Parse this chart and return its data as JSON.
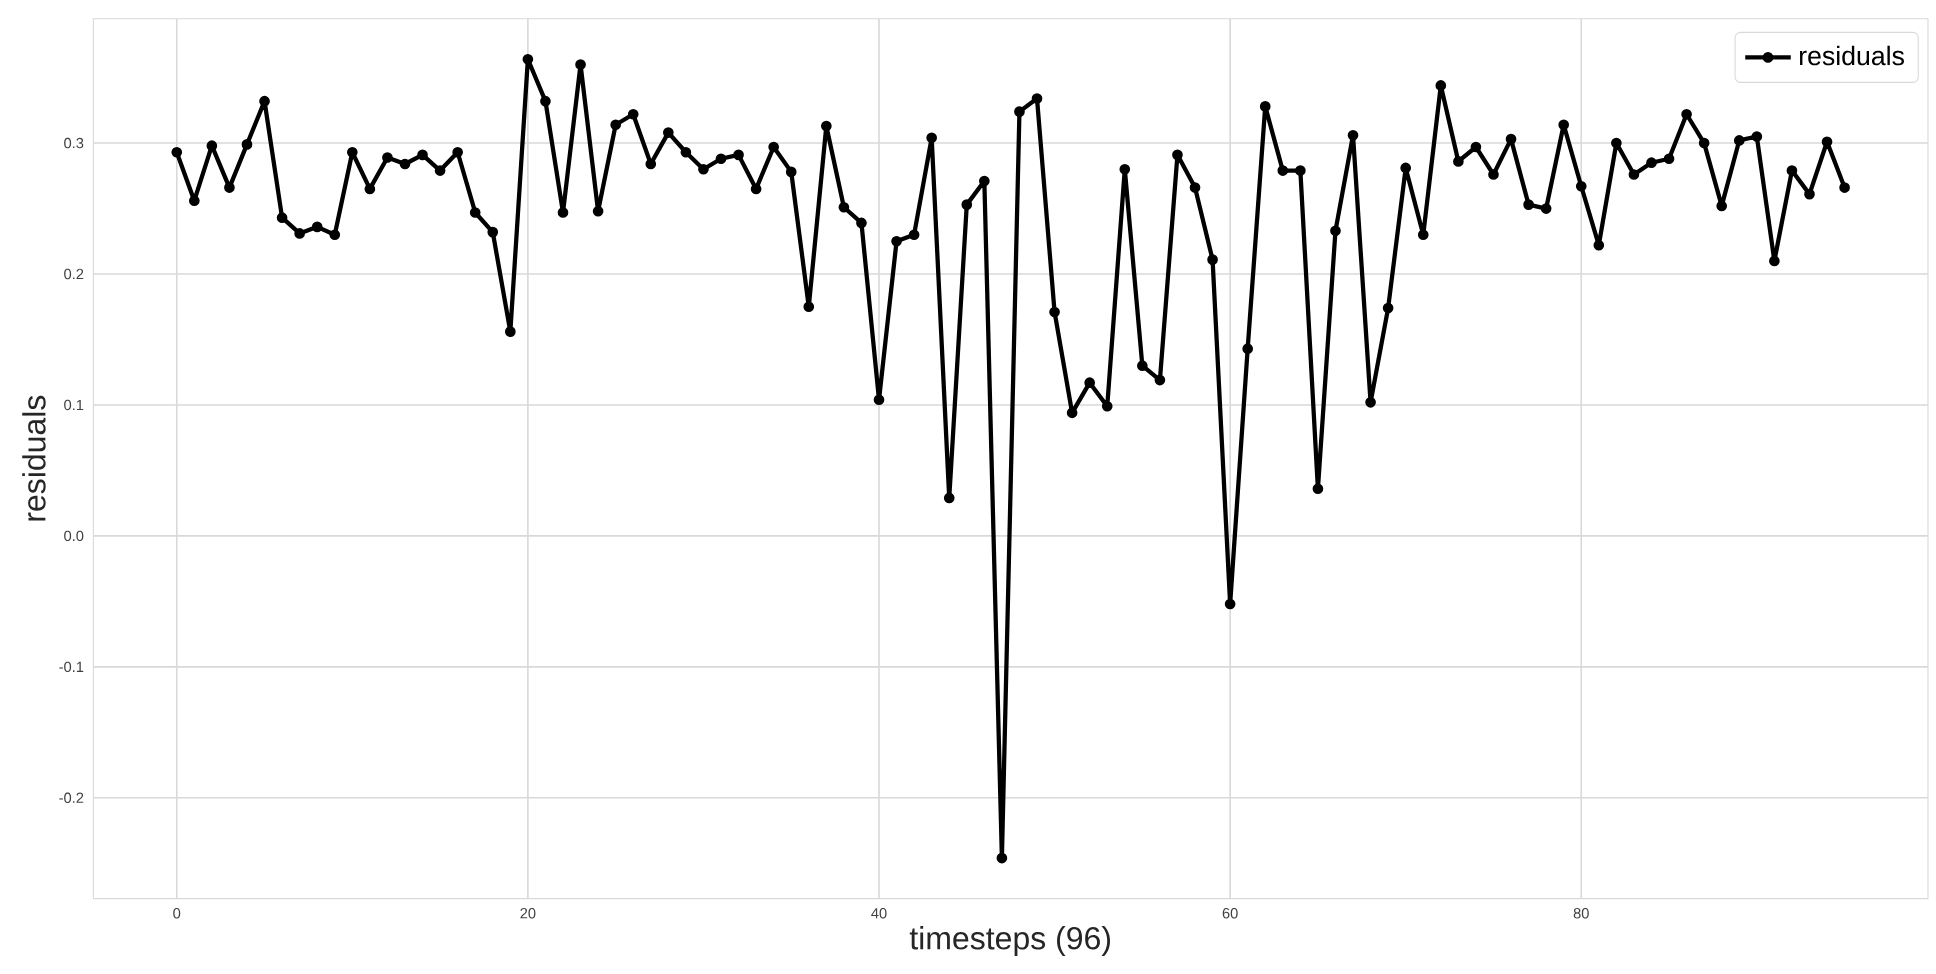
{
  "chart_data": {
    "type": "line",
    "xlabel": "timesteps (96)",
    "ylabel": "residuals",
    "x": [
      0,
      1,
      2,
      3,
      4,
      5,
      6,
      7,
      8,
      9,
      10,
      11,
      12,
      13,
      14,
      15,
      16,
      17,
      18,
      19,
      20,
      21,
      22,
      23,
      24,
      25,
      26,
      27,
      28,
      29,
      30,
      31,
      32,
      33,
      34,
      35,
      36,
      37,
      38,
      39,
      40,
      41,
      42,
      43,
      44,
      45,
      46,
      47,
      48,
      49,
      50,
      51,
      52,
      53,
      54,
      55,
      56,
      57,
      58,
      59,
      60,
      61,
      62,
      63,
      64,
      65,
      66,
      67,
      68,
      69,
      70,
      71,
      72,
      73,
      74,
      75,
      76,
      77,
      78,
      79,
      80,
      81,
      82,
      83,
      84,
      85,
      86,
      87,
      88,
      89,
      90,
      91,
      92,
      93,
      94,
      95
    ],
    "series": [
      {
        "name": "residuals",
        "color": "#000000",
        "values": [
          0.293,
          0.256,
          0.298,
          0.266,
          0.299,
          0.332,
          0.243,
          0.231,
          0.236,
          0.23,
          0.293,
          0.265,
          0.289,
          0.284,
          0.291,
          0.279,
          0.293,
          0.247,
          0.232,
          0.156,
          0.364,
          0.332,
          0.247,
          0.36,
          0.248,
          0.314,
          0.322,
          0.284,
          0.308,
          0.293,
          0.28,
          0.288,
          0.291,
          0.265,
          0.297,
          0.278,
          0.175,
          0.313,
          0.251,
          0.239,
          0.104,
          0.225,
          0.23,
          0.304,
          0.029,
          0.253,
          0.271,
          -0.246,
          0.324,
          0.334,
          0.171,
          0.094,
          0.117,
          0.099,
          0.28,
          0.13,
          0.119,
          0.291,
          0.266,
          0.211,
          -0.052,
          0.143,
          0.328,
          0.279,
          0.279,
          0.036,
          0.233,
          0.306,
          0.102,
          0.174,
          0.281,
          0.23,
          0.344,
          0.286,
          0.297,
          0.276,
          0.303,
          0.253,
          0.25,
          0.314,
          0.267,
          0.222,
          0.3,
          0.276,
          0.285,
          0.288,
          0.322,
          0.3,
          0.252,
          0.302,
          0.305,
          0.21,
          0.279,
          0.261,
          0.301,
          0.266
        ]
      }
    ],
    "xlim": [
      -4.75,
      99.75
    ],
    "ylim": [
      -0.277,
      0.395
    ],
    "xticks": [
      0,
      20,
      40,
      60,
      80
    ],
    "yticks": [
      -0.2,
      -0.1,
      {
        "value": 0,
        "label": "0.0"
      },
      0.1,
      0.2,
      0.3
    ],
    "grid": true,
    "legend": "top right",
    "marker": "circle",
    "line_style": "solid"
  }
}
